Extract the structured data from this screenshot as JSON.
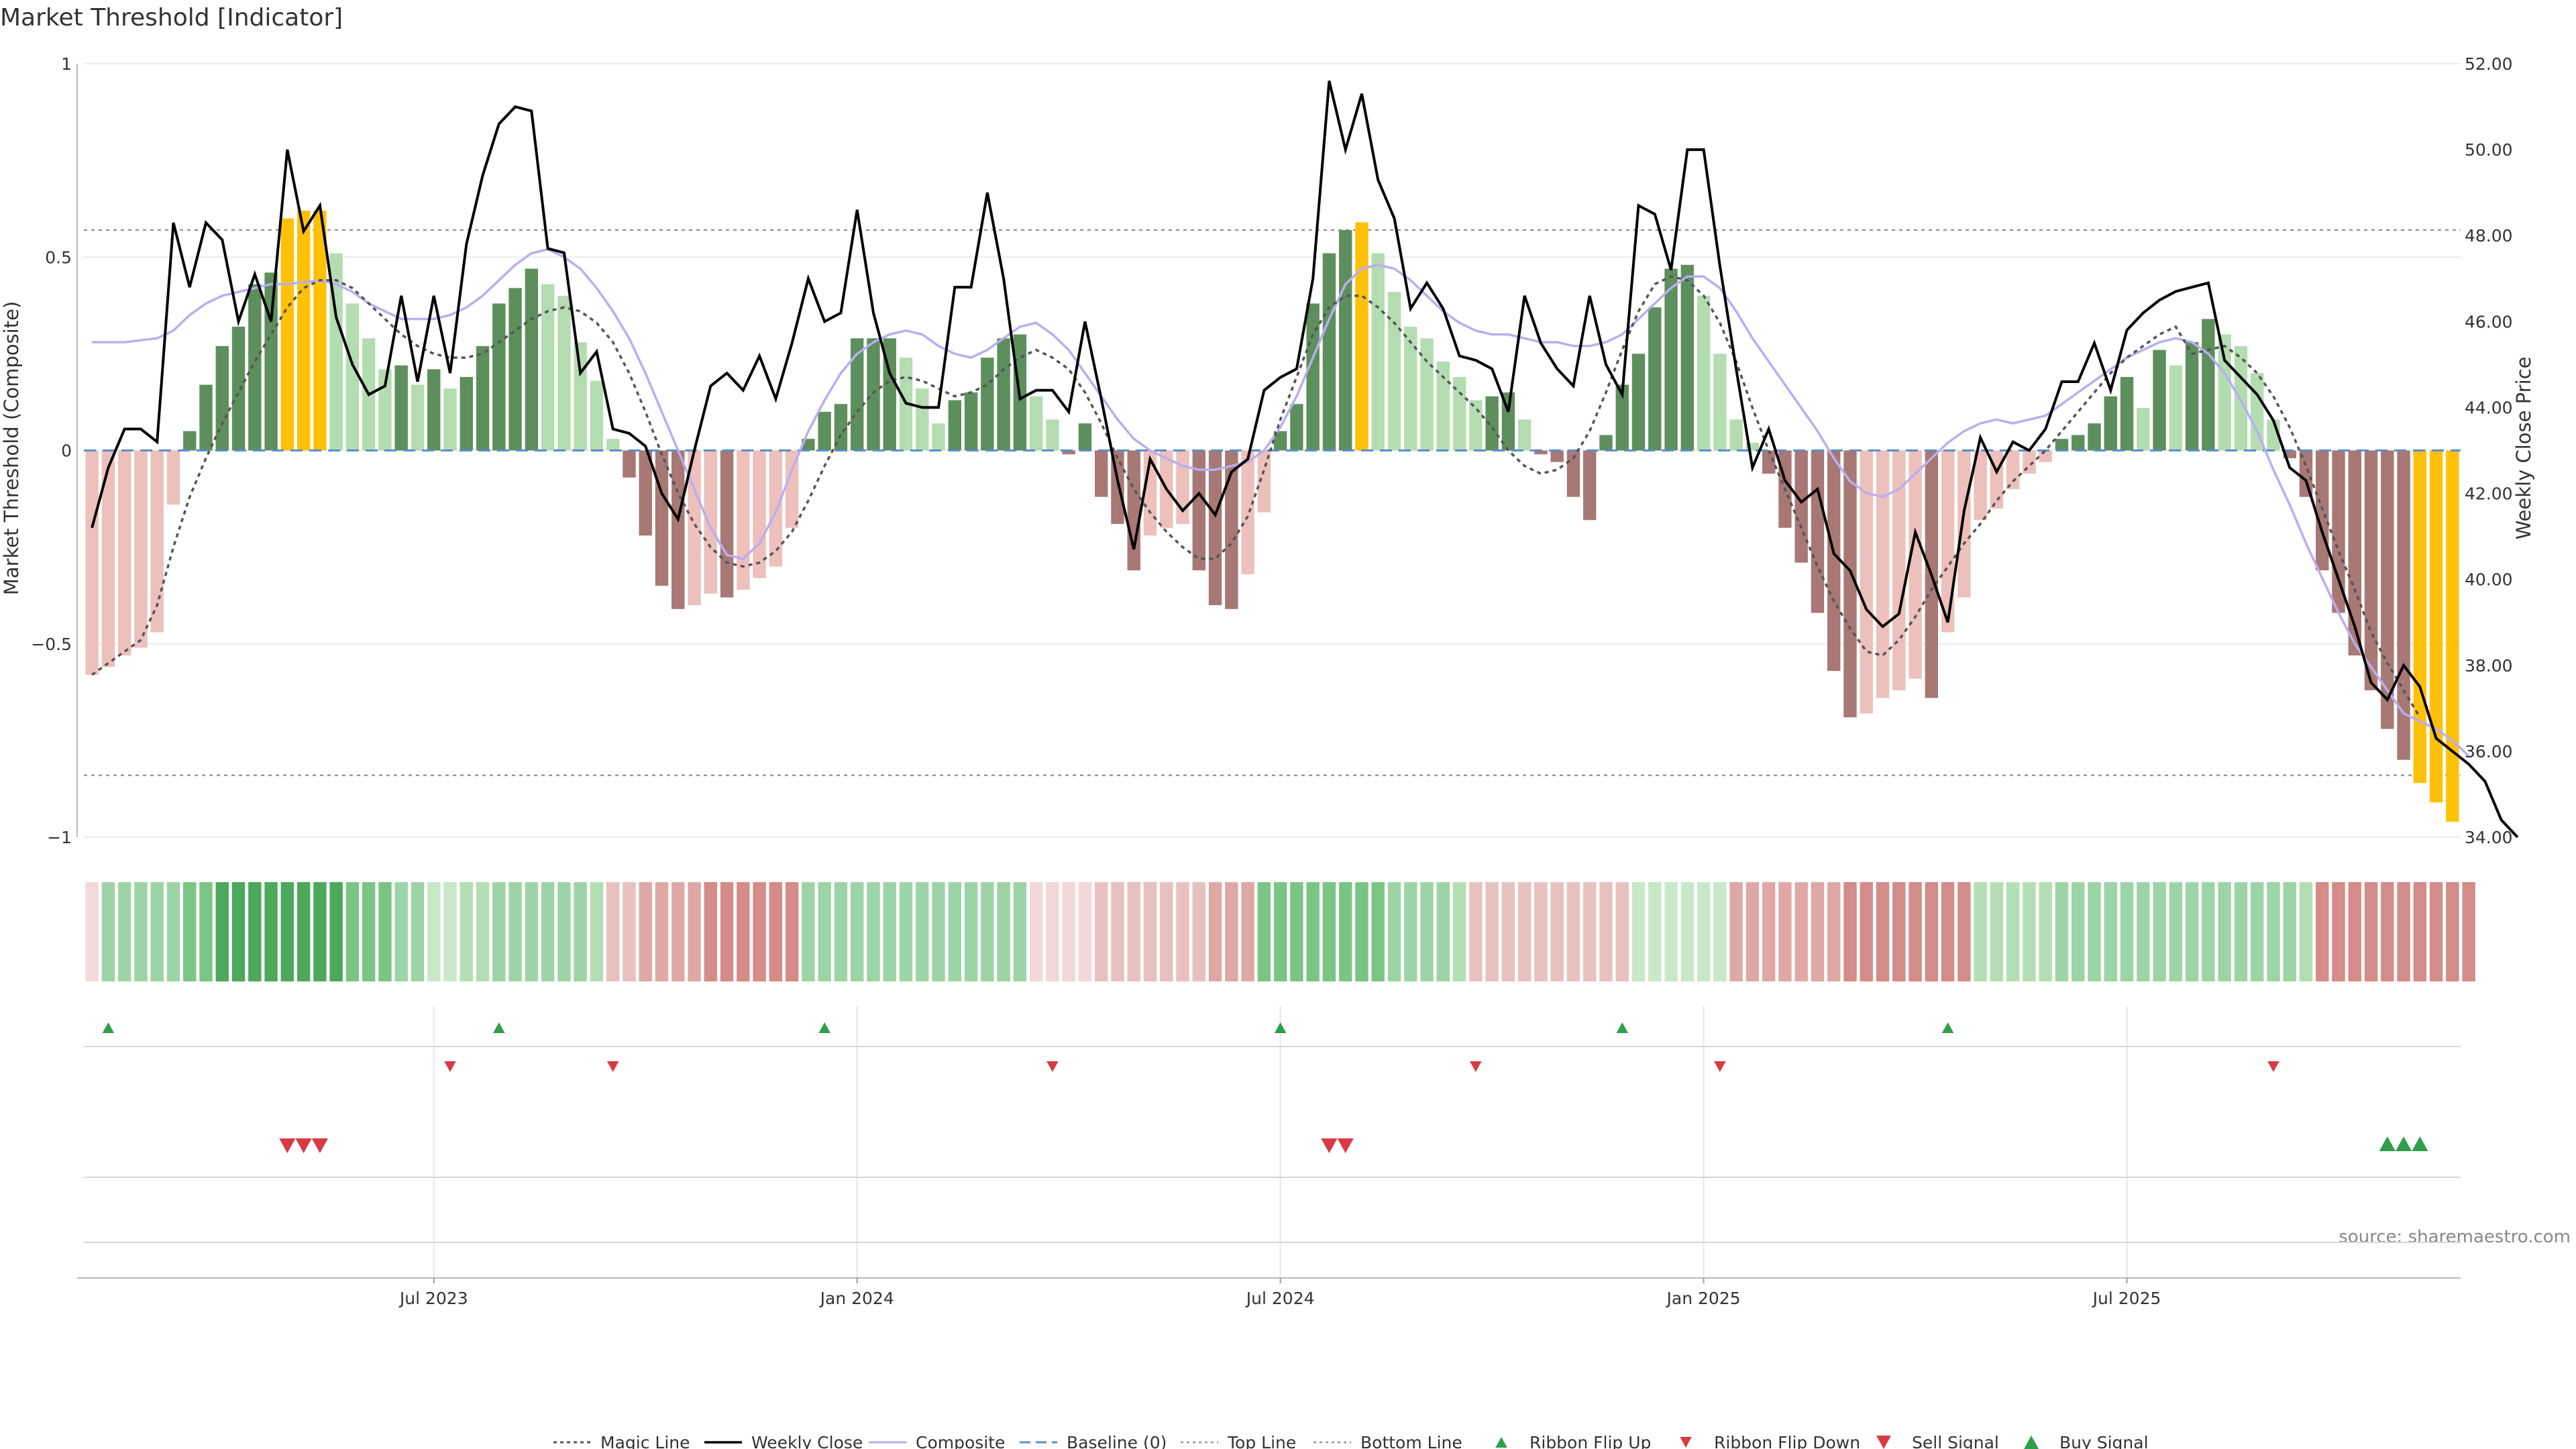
{
  "chart_data": {
    "type": "bar",
    "title": "Market Threshold [Indicator]",
    "ylabel_left": "Market Threshold (Composite)",
    "ylabel_right": "Weekly Close Price",
    "source": "source: sharemaestro.com",
    "ylim_left": [
      -1,
      1
    ],
    "ylim_right": [
      34,
      52
    ],
    "yticks_left": [
      {
        "v": 1,
        "label": "1"
      },
      {
        "v": 0.5,
        "label": "0.5"
      },
      {
        "v": 0,
        "label": "0"
      },
      {
        "v": -0.5,
        "label": "−0.5"
      },
      {
        "v": -1,
        "label": "−1"
      }
    ],
    "yticks_right": [
      {
        "v": 52,
        "label": "52.00"
      },
      {
        "v": 50,
        "label": "50.00"
      },
      {
        "v": 48,
        "label": "48.00"
      },
      {
        "v": 46,
        "label": "46.00"
      },
      {
        "v": 44,
        "label": "44.00"
      },
      {
        "v": 42,
        "label": "42.00"
      },
      {
        "v": 40,
        "label": "40.00"
      },
      {
        "v": 38,
        "label": "38.00"
      },
      {
        "v": 36,
        "label": "36.00"
      },
      {
        "v": 34,
        "label": "34.00"
      }
    ],
    "xticks": [
      {
        "i": 21,
        "label": "Jul 2023"
      },
      {
        "i": 47,
        "label": "Jan 2024"
      },
      {
        "i": 73,
        "label": "Jul 2024"
      },
      {
        "i": 99,
        "label": "Jan 2025"
      },
      {
        "i": 125,
        "label": "Jul 2025"
      }
    ],
    "top_line": 0.57,
    "bottom_line": -0.84,
    "composite": [
      -0.58,
      -0.56,
      -0.53,
      -0.51,
      -0.47,
      -0.14,
      0.05,
      0.17,
      0.27,
      0.32,
      0.43,
      0.46,
      0.6,
      0.62,
      0.62,
      0.51,
      0.38,
      0.29,
      0.21,
      0.22,
      0.17,
      0.21,
      0.16,
      0.19,
      0.27,
      0.38,
      0.42,
      0.47,
      0.43,
      0.4,
      0.28,
      0.18,
      0.03,
      -0.07,
      -0.22,
      -0.35,
      -0.41,
      -0.4,
      -0.37,
      -0.38,
      -0.36,
      -0.33,
      -0.3,
      -0.2,
      0.03,
      0.1,
      0.12,
      0.29,
      0.29,
      0.29,
      0.24,
      0.16,
      0.07,
      0.13,
      0.15,
      0.24,
      0.29,
      0.3,
      0.14,
      0.08,
      -0.01,
      0.07,
      -0.12,
      -0.19,
      -0.31,
      -0.22,
      -0.2,
      -0.19,
      -0.31,
      -0.4,
      -0.41,
      -0.32,
      -0.16,
      0.05,
      0.12,
      0.38,
      0.51,
      0.57,
      0.59,
      0.51,
      0.41,
      0.32,
      0.29,
      0.23,
      0.19,
      0.13,
      0.14,
      0.15,
      0.08,
      -0.01,
      -0.03,
      -0.12,
      -0.18,
      0.04,
      0.17,
      0.25,
      0.37,
      0.47,
      0.48,
      0.4,
      0.25,
      0.08,
      0.02,
      -0.06,
      -0.2,
      -0.29,
      -0.42,
      -0.57,
      -0.69,
      -0.68,
      -0.64,
      -0.62,
      -0.59,
      -0.64,
      -0.47,
      -0.38,
      -0.18,
      -0.15,
      -0.1,
      -0.06,
      -0.03,
      0.03,
      0.04,
      0.07,
      0.14,
      0.19,
      0.11,
      0.26,
      0.22,
      0.28,
      0.34,
      0.3,
      0.27,
      0.2,
      0.08,
      -0.02,
      -0.12,
      -0.31,
      -0.42,
      -0.53,
      -0.62,
      -0.72,
      -0.8,
      -0.86,
      -0.91,
      -0.96
    ],
    "weekly_close": [
      41.2,
      42.6,
      43.5,
      43.5,
      43.2,
      48.3,
      46.8,
      48.3,
      47.9,
      46.0,
      47.1,
      46.0,
      50.0,
      48.1,
      48.7,
      46.1,
      45.0,
      44.3,
      44.5,
      46.6,
      44.6,
      46.6,
      44.8,
      47.8,
      49.4,
      50.6,
      51.0,
      50.9,
      47.7,
      47.6,
      44.8,
      45.3,
      43.5,
      43.4,
      43.1,
      42.0,
      41.4,
      43.0,
      44.5,
      44.8,
      44.4,
      45.2,
      44.2,
      45.5,
      47.0,
      46.0,
      46.2,
      48.6,
      46.2,
      44.8,
      44.1,
      44.0,
      44.0,
      46.8,
      46.8,
      49.0,
      47.0,
      44.2,
      44.4,
      44.4,
      43.9,
      46.0,
      44.2,
      42.3,
      40.7,
      42.8,
      42.1,
      41.6,
      42.0,
      41.5,
      42.5,
      42.8,
      44.4,
      44.7,
      44.9,
      47.0,
      51.6,
      50.0,
      51.3,
      49.3,
      48.4,
      46.3,
      46.9,
      46.3,
      45.2,
      45.1,
      44.9,
      43.9,
      46.6,
      45.5,
      44.9,
      44.5,
      46.6,
      45.0,
      44.3,
      48.7,
      48.5,
      47.2,
      50.0,
      50.0,
      47.3,
      44.9,
      42.6,
      43.5,
      42.3,
      41.8,
      42.1,
      40.6,
      40.2,
      39.3,
      38.9,
      39.2,
      41.1,
      40.1,
      39.0,
      41.6,
      43.3,
      42.5,
      43.2,
      43.0,
      43.5,
      44.6,
      44.6,
      45.5,
      44.4,
      45.8,
      46.2,
      46.5,
      46.7,
      46.8,
      46.9,
      45.1,
      44.7,
      44.3,
      43.7,
      42.6,
      42.3,
      41.1,
      40.0,
      38.9,
      37.6,
      37.2,
      38.0,
      37.5,
      36.3,
      36.0,
      35.7,
      35.3,
      34.4,
      34.0
    ],
    "composite_smooth": [
      0.28,
      0.28,
      0.28,
      0.285,
      0.29,
      0.31,
      0.35,
      0.38,
      0.4,
      0.41,
      0.42,
      0.43,
      0.43,
      0.435,
      0.44,
      0.43,
      0.41,
      0.38,
      0.36,
      0.34,
      0.34,
      0.34,
      0.35,
      0.37,
      0.4,
      0.44,
      0.48,
      0.51,
      0.52,
      0.5,
      0.47,
      0.42,
      0.36,
      0.29,
      0.2,
      0.1,
      0.0,
      -0.1,
      -0.2,
      -0.27,
      -0.28,
      -0.24,
      -0.16,
      -0.05,
      0.05,
      0.13,
      0.2,
      0.25,
      0.28,
      0.3,
      0.31,
      0.3,
      0.27,
      0.25,
      0.24,
      0.26,
      0.29,
      0.32,
      0.33,
      0.3,
      0.26,
      0.2,
      0.14,
      0.08,
      0.03,
      0.0,
      -0.02,
      -0.04,
      -0.05,
      -0.05,
      -0.04,
      -0.03,
      0.0,
      0.06,
      0.14,
      0.24,
      0.34,
      0.43,
      0.47,
      0.48,
      0.47,
      0.44,
      0.4,
      0.36,
      0.33,
      0.31,
      0.3,
      0.3,
      0.29,
      0.28,
      0.28,
      0.27,
      0.27,
      0.28,
      0.3,
      0.34,
      0.38,
      0.42,
      0.45,
      0.45,
      0.42,
      0.36,
      0.29,
      0.23,
      0.17,
      0.11,
      0.05,
      -0.02,
      -0.08,
      -0.11,
      -0.12,
      -0.1,
      -0.06,
      -0.02,
      0.02,
      0.05,
      0.07,
      0.08,
      0.07,
      0.08,
      0.09,
      0.12,
      0.15,
      0.18,
      0.21,
      0.24,
      0.26,
      0.28,
      0.29,
      0.28,
      0.25,
      0.2,
      0.13,
      0.05,
      -0.05,
      -0.14,
      -0.24,
      -0.33,
      -0.42,
      -0.5,
      -0.56,
      -0.62,
      -0.68,
      -0.7,
      -0.72,
      -0.75,
      -0.79
    ],
    "magic_line": [
      -0.58,
      -0.55,
      -0.52,
      -0.49,
      -0.4,
      -0.25,
      -0.12,
      -0.02,
      0.07,
      0.15,
      0.23,
      0.3,
      0.37,
      0.42,
      0.44,
      0.44,
      0.42,
      0.38,
      0.34,
      0.3,
      0.27,
      0.25,
      0.24,
      0.24,
      0.25,
      0.28,
      0.31,
      0.34,
      0.36,
      0.37,
      0.36,
      0.33,
      0.28,
      0.2,
      0.1,
      -0.01,
      -0.11,
      -0.19,
      -0.25,
      -0.29,
      -0.3,
      -0.29,
      -0.26,
      -0.21,
      -0.13,
      -0.04,
      0.04,
      0.1,
      0.15,
      0.18,
      0.19,
      0.18,
      0.16,
      0.14,
      0.15,
      0.17,
      0.21,
      0.24,
      0.26,
      0.24,
      0.21,
      0.15,
      0.07,
      -0.02,
      -0.1,
      -0.16,
      -0.21,
      -0.25,
      -0.28,
      -0.28,
      -0.24,
      -0.17,
      -0.05,
      0.08,
      0.19,
      0.3,
      0.37,
      0.4,
      0.4,
      0.37,
      0.33,
      0.28,
      0.23,
      0.19,
      0.15,
      0.11,
      0.06,
      0.0,
      -0.04,
      -0.06,
      -0.05,
      -0.02,
      0.05,
      0.15,
      0.26,
      0.36,
      0.43,
      0.45,
      0.44,
      0.4,
      0.33,
      0.23,
      0.11,
      0.0,
      -0.1,
      -0.2,
      -0.3,
      -0.39,
      -0.46,
      -0.52,
      -0.53,
      -0.49,
      -0.43,
      -0.36,
      -0.3,
      -0.24,
      -0.19,
      -0.13,
      -0.08,
      -0.04,
      0.0,
      0.05,
      0.1,
      0.15,
      0.2,
      0.24,
      0.27,
      0.3,
      0.32,
      0.25,
      0.26,
      0.27,
      0.24,
      0.2,
      0.14,
      0.06,
      -0.04,
      -0.15,
      -0.26,
      -0.36,
      -0.47,
      -0.55,
      -0.62,
      -0.69
    ],
    "ribbon_shades": [
      0,
      3,
      3,
      3,
      3,
      3,
      4,
      4,
      5,
      5,
      5,
      5,
      5,
      5,
      5,
      5,
      4,
      4,
      4,
      3,
      3,
      1,
      1,
      2,
      2,
      3,
      3,
      3,
      3,
      3,
      3,
      2,
      -2,
      -2,
      -3,
      -3,
      -3,
      -3,
      -4,
      -4,
      -4,
      -4,
      -4,
      -4,
      3,
      3,
      3,
      3,
      3,
      3,
      3,
      3,
      3,
      3,
      3,
      3,
      3,
      3,
      -1,
      -1,
      -1,
      -1,
      -2,
      -2,
      -2,
      -2,
      -2,
      -2,
      -2,
      -3,
      -3,
      -3,
      4,
      4,
      4,
      4,
      4,
      4,
      4,
      4,
      3,
      3,
      3,
      3,
      2,
      -2,
      -2,
      -2,
      -2,
      -2,
      -2,
      -2,
      -2,
      -2,
      -2,
      1,
      1,
      1,
      1,
      1,
      1,
      -3,
      -3,
      -3,
      -3,
      -3,
      -3,
      -3,
      -4,
      -4,
      -4,
      -4,
      -4,
      -4,
      -4,
      -4,
      2,
      2,
      2,
      2,
      2,
      3,
      3,
      3,
      3,
      3,
      3,
      3,
      3,
      3,
      3,
      3,
      3,
      3,
      3,
      3,
      2,
      -4,
      -4,
      -4,
      -4,
      -4,
      -4,
      -4,
      -4,
      -4,
      -4
    ],
    "ribbon_flip_up": [
      1,
      25,
      45,
      73,
      94,
      114
    ],
    "ribbon_flip_down": [
      22,
      32,
      59,
      85,
      100,
      134
    ],
    "sell_signal": [
      12,
      13,
      14,
      76,
      77
    ],
    "buy_signal": [
      141,
      142,
      143
    ],
    "legend": [
      {
        "key": "magic",
        "label": "Magic Line"
      },
      {
        "key": "close",
        "label": "Weekly Close"
      },
      {
        "key": "composite",
        "label": "Composite"
      },
      {
        "key": "baseline",
        "label": "Baseline (0)"
      },
      {
        "key": "top",
        "label": "Top Line"
      },
      {
        "key": "bottom",
        "label": "Bottom Line"
      },
      {
        "key": "flipup",
        "label": "Ribbon Flip Up"
      },
      {
        "key": "flipdown",
        "label": "Ribbon Flip Down"
      },
      {
        "key": "sell",
        "label": "Sell Signal"
      },
      {
        "key": "buy",
        "label": "Buy Signal"
      }
    ],
    "colors": {
      "bar_pos_strong": "#5d8f5d",
      "bar_pos_light": "#b3ddb0",
      "bar_neg_strong": "#a87874",
      "bar_neg_light": "#edc0bb",
      "bar_extreme": "#ffc107",
      "close": "#000000",
      "composite_line": "#b9aef0",
      "magic": "#555555",
      "baseline": "#5b8ec7",
      "up_marker": "#2e9e4a",
      "down_marker": "#d93a42"
    }
  }
}
